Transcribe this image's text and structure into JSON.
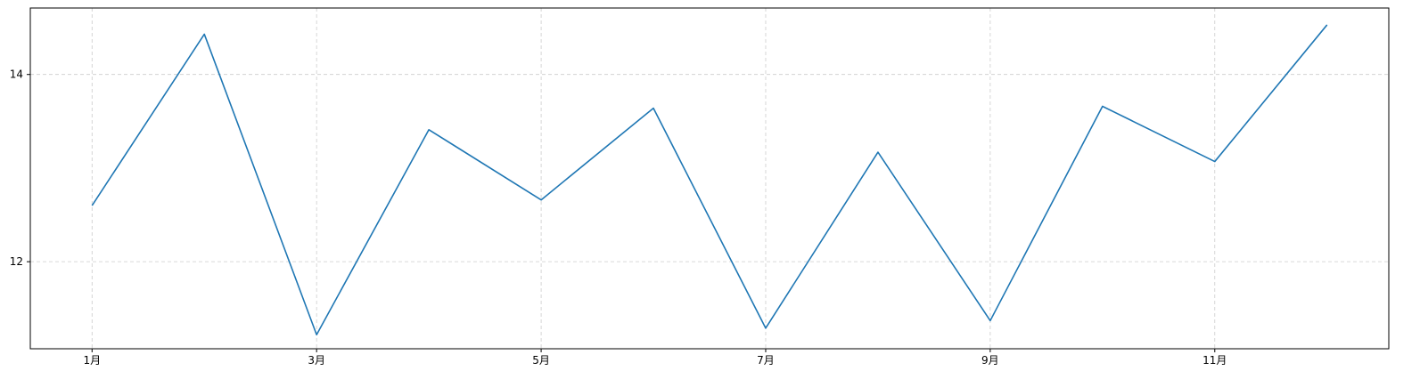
{
  "chart_data": {
    "type": "line",
    "title": "",
    "xlabel": "",
    "ylabel": "",
    "x": [
      1,
      2,
      3,
      4,
      5,
      6,
      7,
      8,
      9,
      10,
      11,
      12
    ],
    "x_tick_values": [
      1,
      3,
      5,
      7,
      9,
      11
    ],
    "x_tick_labels": [
      "1月",
      "3月",
      "5月",
      "7月",
      "9月",
      "11月"
    ],
    "y_ticks": [
      12,
      14
    ],
    "y_tick_labels": [
      "12",
      "14"
    ],
    "xlim": [
      0.45,
      12.55
    ],
    "ylim": [
      11.07,
      14.71
    ],
    "grid": true,
    "series": [
      {
        "name": "",
        "color": "#1f77b4",
        "values": [
          12.6,
          14.43,
          11.22,
          13.41,
          12.66,
          13.64,
          11.29,
          13.17,
          11.37,
          13.66,
          13.07,
          14.53
        ]
      }
    ]
  }
}
